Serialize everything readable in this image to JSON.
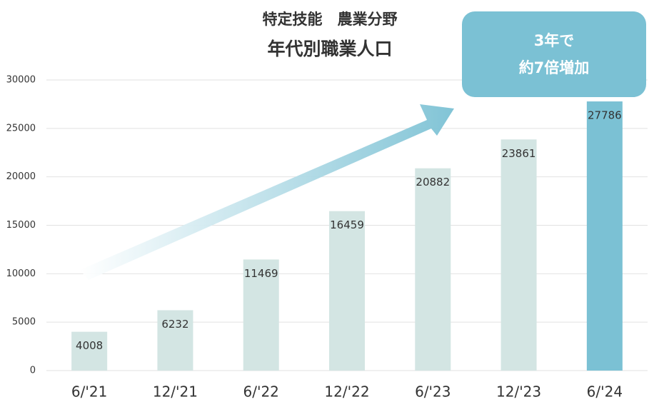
{
  "chart_data": {
    "type": "bar",
    "subtitle": "特定技能　農業分野",
    "title": "年代別職業人口",
    "annotation": [
      "3年で",
      "約7倍増加"
    ],
    "categories": [
      "6/'21",
      "12/'21",
      "6/'22",
      "12/'22",
      "6/'23",
      "12/'23",
      "6/'24"
    ],
    "values": [
      4008,
      6232,
      11469,
      16459,
      20882,
      23861,
      27786
    ],
    "colors": [
      "#d3e5e3",
      "#d3e5e3",
      "#d3e5e3",
      "#d3e5e3",
      "#d3e5e3",
      "#d3e5e3",
      "#7bc1d4"
    ],
    "ylim": [
      0,
      30000
    ],
    "yticks": [
      0,
      5000,
      10000,
      15000,
      20000,
      25000,
      30000
    ],
    "grid": true
  }
}
